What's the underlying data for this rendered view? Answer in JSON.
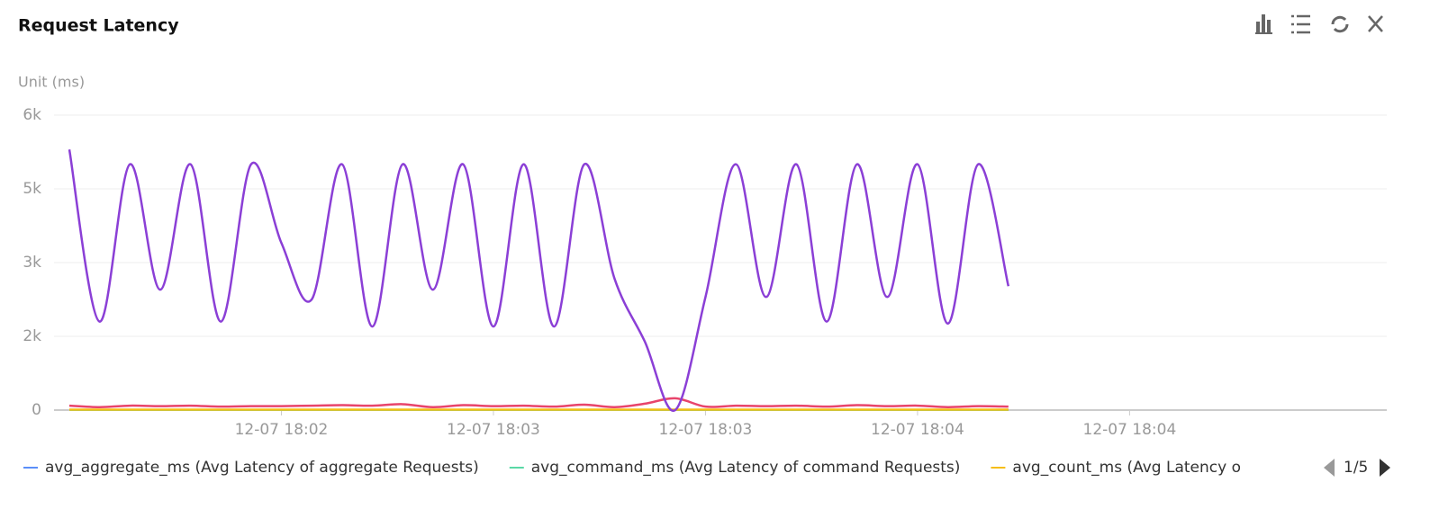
{
  "chart_data": {
    "type": "line",
    "title": "Request Latency",
    "y_axis_label": "Unit (ms)",
    "categories": [
      null,
      null,
      null,
      null,
      null,
      null,
      null,
      "12-07 18:02",
      null,
      null,
      null,
      null,
      null,
      null,
      "12-07 18:03",
      null,
      null,
      null,
      null,
      null,
      null,
      "12-07 18:03",
      null,
      null,
      null,
      null,
      null,
      null,
      "12-07 18:04",
      null,
      null,
      null,
      null,
      null,
      null,
      "12-07 18:04"
    ],
    "ylim": [
      0,
      6000
    ],
    "yticks": [
      0,
      {
        "value": 1500,
        "label": "2k"
      },
      {
        "value": 3000,
        "label": "3k"
      },
      {
        "value": 4500,
        "label": "5k"
      },
      {
        "value": 6000,
        "label": "6k"
      }
    ],
    "grid": true,
    "series": [
      {
        "name": "avg_aggregate_ms (Avg Latency of aggregate Requests)",
        "color": "#5b8ff9",
        "values": [
          5,
          5,
          5,
          5,
          5,
          5,
          5,
          5,
          5,
          5,
          5,
          5,
          5,
          5,
          5,
          5,
          5,
          5,
          5,
          5,
          5,
          5,
          5,
          5,
          5,
          5,
          5,
          5,
          5,
          5,
          5,
          5,
          null,
          null,
          null,
          null
        ]
      },
      {
        "name": "avg_command_ms (Avg Latency of command Requests)",
        "color": "#5ad8a6",
        "values": [
          5,
          5,
          5,
          5,
          5,
          5,
          5,
          5,
          5,
          5,
          5,
          5,
          5,
          5,
          5,
          5,
          5,
          5,
          5,
          5,
          5,
          5,
          5,
          5,
          5,
          5,
          5,
          5,
          5,
          5,
          5,
          5,
          null,
          null,
          null,
          null
        ]
      },
      {
        "name": "avg_count_ms (Avg Latency o",
        "color": "#f6bd16",
        "values": [
          10,
          10,
          10,
          10,
          10,
          10,
          10,
          10,
          10,
          10,
          10,
          10,
          10,
          10,
          10,
          10,
          10,
          10,
          10,
          10,
          10,
          10,
          10,
          10,
          10,
          10,
          10,
          10,
          10,
          10,
          10,
          10,
          null,
          null,
          null,
          null
        ]
      },
      {
        "color": "#e8446b",
        "values": [
          90,
          60,
          90,
          80,
          90,
          70,
          80,
          80,
          90,
          100,
          90,
          120,
          60,
          100,
          80,
          90,
          70,
          110,
          60,
          130,
          240,
          70,
          90,
          80,
          90,
          70,
          100,
          80,
          90,
          60,
          80,
          70,
          null,
          null,
          null,
          null
        ]
      },
      {
        "color": "#8b3fd6",
        "values": [
          5300,
          1800,
          5000,
          2450,
          5000,
          1800,
          5000,
          3400,
          2250,
          5000,
          1700,
          5000,
          2450,
          5000,
          1700,
          5000,
          1700,
          5000,
          2670,
          1390,
          0,
          2300,
          5000,
          2300,
          5000,
          1800,
          5000,
          2300,
          5000,
          1760,
          5000,
          2520,
          null,
          null,
          null,
          null
        ]
      }
    ],
    "legend_page": "1/5"
  }
}
